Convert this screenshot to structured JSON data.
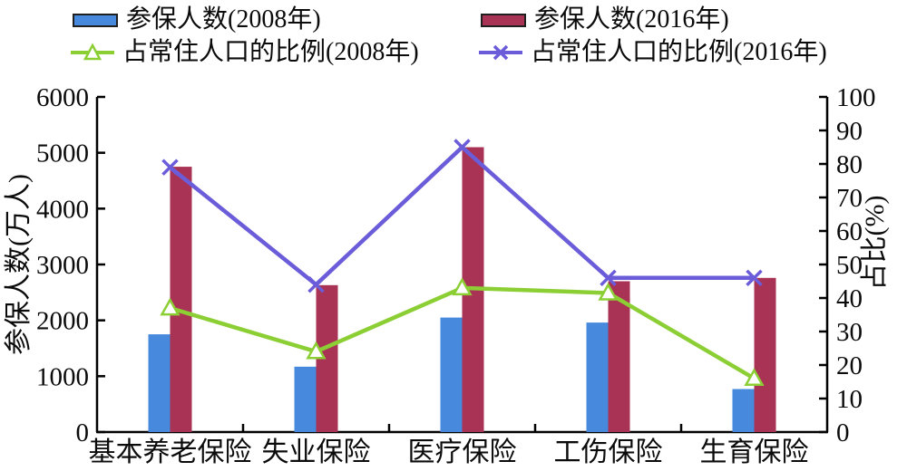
{
  "chart_data": {
    "type": "bar+line combo (dual y-axis)",
    "categories": [
      "基本养老保险",
      "失业保险",
      "医疗保险",
      "工伤保险",
      "生育保险"
    ],
    "bar_series": [
      {
        "name": "参保人数(2008年)",
        "color": "#4689dd",
        "axis": "left",
        "values": [
          1750,
          1170,
          2050,
          1960,
          770
        ]
      },
      {
        "name": "参保人数(2016年)",
        "color": "#a93355",
        "axis": "left",
        "values": [
          4750,
          2630,
          5100,
          2700,
          2760
        ]
      }
    ],
    "line_series": [
      {
        "name": "占常住人口的比例(2008年)",
        "color": "#8ccf35",
        "marker": "triangle",
        "axis": "right",
        "values": [
          37,
          24,
          43,
          41.5,
          16
        ]
      },
      {
        "name": "占常住人口的比例(2016年)",
        "color": "#6b5cd9",
        "marker": "x",
        "axis": "right",
        "values": [
          79,
          44,
          85,
          46,
          46
        ]
      }
    ],
    "left_axis": {
      "title": "参保人数(万人)",
      "min": 0,
      "max": 6000,
      "ticks": [
        0,
        1000,
        2000,
        3000,
        4000,
        5000,
        6000
      ]
    },
    "right_axis": {
      "title": "占比(%)",
      "min": 0,
      "max": 100,
      "ticks": [
        0,
        10,
        20,
        30,
        40,
        50,
        60,
        70,
        80,
        90,
        100
      ]
    },
    "grid": false,
    "legend_position": "top",
    "axis_color": "#000000",
    "text_color": "#0b0b0b"
  }
}
